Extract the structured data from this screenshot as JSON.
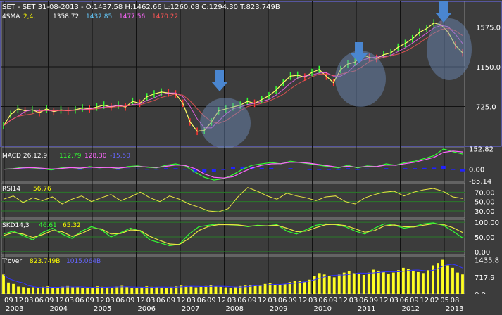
{
  "chart_data": {
    "type": "line",
    "x_ticks": {
      "months": [
        "09",
        "12",
        "03",
        "06",
        "09",
        "12",
        "03",
        "06",
        "09",
        "12",
        "03",
        "06",
        "09",
        "12",
        "03",
        "06",
        "09",
        "12",
        "03",
        "06",
        "09",
        "12",
        "03",
        "06",
        "09",
        "12",
        "03",
        "06",
        "09",
        "12",
        "03",
        "06",
        "09",
        "12",
        "03",
        "06",
        "09",
        "12",
        "03",
        "06",
        "09",
        "12",
        "02",
        "05",
        "08"
      ],
      "years": [
        "2003",
        "2004",
        "2005",
        "2006",
        "2007",
        "2008",
        "2009",
        "2010",
        "2011",
        "2012",
        "2013"
      ]
    },
    "panels": {
      "price": {
        "header": "SET - SET 31-08-2013 - O:1437.58 H:1462.66 L:1260.08 C:1294.30 T:823.749B",
        "ma_label": "4SMA",
        "ma_params": "2,4,",
        "ma_values": [
          "1358.72",
          "1432.85",
          "1477.56",
          "1470.22"
        ],
        "y_ticks": [
          "1575.0",
          "1150.0",
          "725.0"
        ],
        "ylim": [
          300,
          1850
        ],
        "series": [
          {
            "x": [
              0,
              2,
              4,
              6,
              8,
              10,
              12,
              14,
              16,
              18,
              20,
              22,
              24,
              26,
              28,
              30,
              32,
              34,
              36,
              38,
              40,
              42,
              44,
              46,
              48,
              50,
              52,
              54,
              56,
              58,
              60,
              62,
              64,
              66,
              68,
              70,
              72,
              74,
              76,
              78,
              80,
              82,
              84,
              86,
              88,
              90,
              92,
              94,
              96,
              98,
              100,
              102,
              104,
              106,
              108,
              110,
              112,
              114,
              116,
              118,
              120,
              122,
              124,
              126,
              128
            ],
            "y": [
              520,
              640,
              700,
              680,
              690,
              660,
              700,
              670,
              690,
              680,
              690,
              710,
              700,
              720,
              740,
              720,
              740,
              720,
              780,
              760,
              830,
              860,
              880,
              870,
              860,
              760,
              560,
              460,
              470,
              560,
              680,
              700,
              720,
              740,
              780,
              760,
              800,
              840,
              900,
              980,
              1050,
              1060,
              1040,
              1090,
              1120,
              1050,
              980,
              1120,
              1180,
              1200,
              1280,
              1250,
              1240,
              1280,
              1300,
              1360,
              1400,
              1450,
              1520,
              1560,
              1620,
              1600,
              1520,
              1380,
              1300
            ]
          }
        ]
      },
      "macd": {
        "header": "MACD 26,12,9",
        "values": [
          "112.79",
          "128.30",
          "-15.50"
        ],
        "y_ticks": [
          "152.82",
          "0.00",
          "-85.14"
        ],
        "ylim": [
          -90,
          160
        ],
        "macd": [
          0,
          5,
          15,
          10,
          5,
          -5,
          10,
          15,
          5,
          20,
          10,
          15,
          5,
          20,
          25,
          15,
          10,
          30,
          40,
          25,
          -20,
          -60,
          -80,
          -70,
          -40,
          0,
          30,
          40,
          50,
          40,
          60,
          50,
          40,
          30,
          20,
          10,
          30,
          10,
          25,
          20,
          40,
          30,
          50,
          60,
          80,
          100,
          150,
          130,
          112.79
        ],
        "signal": [
          0,
          3,
          10,
          12,
          8,
          2,
          6,
          12,
          9,
          15,
          12,
          13,
          9,
          15,
          20,
          18,
          13,
          22,
          32,
          28,
          5,
          -35,
          -60,
          -65,
          -55,
          -20,
          10,
          30,
          40,
          42,
          52,
          51,
          45,
          35,
          25,
          15,
          22,
          15,
          20,
          20,
          32,
          30,
          42,
          52,
          70,
          88,
          125,
          135,
          128.3
        ]
      },
      "rsi": {
        "header": "RSI14",
        "value": "56.76",
        "y_ticks": [
          "70.00",
          "50.00",
          "30.00"
        ],
        "ylim": [
          15,
          90
        ],
        "values": [
          55,
          62,
          48,
          58,
          52,
          60,
          45,
          55,
          62,
          50,
          58,
          65,
          52,
          60,
          70,
          58,
          50,
          62,
          55,
          45,
          38,
          30,
          28,
          35,
          60,
          80,
          72,
          62,
          55,
          68,
          62,
          58,
          52,
          60,
          62,
          50,
          45,
          58,
          65,
          70,
          72,
          62,
          70,
          75,
          78,
          72,
          60,
          56.76
        ]
      },
      "skd": {
        "header": "SKD14,3",
        "values": [
          "46.61",
          "65.32"
        ],
        "y_ticks": [
          "100.00",
          "50.00",
          "0.00"
        ],
        "ylim": [
          -10,
          110
        ],
        "k": [
          60,
          70,
          55,
          40,
          65,
          80,
          60,
          45,
          70,
          85,
          75,
          50,
          65,
          80,
          70,
          40,
          30,
          20,
          25,
          60,
          85,
          90,
          95,
          92,
          90,
          85,
          90,
          88,
          92,
          70,
          60,
          75,
          90,
          95,
          92,
          85,
          70,
          60,
          80,
          95,
          90,
          80,
          85,
          95,
          98,
          90,
          70,
          46.61
        ],
        "d": [
          55,
          65,
          60,
          48,
          58,
          72,
          68,
          52,
          62,
          78,
          78,
          60,
          62,
          74,
          72,
          52,
          38,
          26,
          24,
          45,
          72,
          86,
          92,
          92,
          91,
          87,
          88,
          88,
          90,
          80,
          68,
          70,
          82,
          92,
          93,
          89,
          78,
          66,
          72,
          88,
          91,
          85,
          84,
          90,
          95,
          93,
          82,
          65.32
        ]
      },
      "turnover": {
        "header": "T'over",
        "values": [
          "823.749B",
          "1015.064B"
        ],
        "y_ticks": [
          "1435.8",
          "717.9",
          "0.0"
        ],
        "ylim": [
          0,
          1600
        ],
        "bars": [
          820,
          480,
          420,
          310,
          290,
          260,
          280,
          240,
          300,
          320,
          280,
          260,
          310,
          330,
          280,
          300,
          260,
          240,
          280,
          320,
          300,
          280,
          260,
          310,
          340,
          300,
          260,
          240,
          280,
          320,
          300,
          290,
          270,
          260,
          300,
          320,
          350,
          330,
          310,
          280,
          300,
          330,
          360,
          320,
          300,
          280,
          260,
          300,
          330,
          350,
          380,
          360,
          340,
          420,
          460,
          400,
          380,
          420,
          500,
          560,
          540,
          520,
          600,
          760,
          880,
          820,
          760,
          700,
          820,
          900,
          960,
          880,
          840,
          800,
          900,
          1020,
          980,
          920,
          860,
          900,
          1000,
          1100,
          1040,
          980,
          920,
          880,
          1000,
          1200,
          1300,
          1435,
          1200,
          1100,
          900,
          823
        ]
      }
    },
    "annotations": [
      "arrow-2008",
      "arrow-2011",
      "arrow-2013"
    ]
  }
}
